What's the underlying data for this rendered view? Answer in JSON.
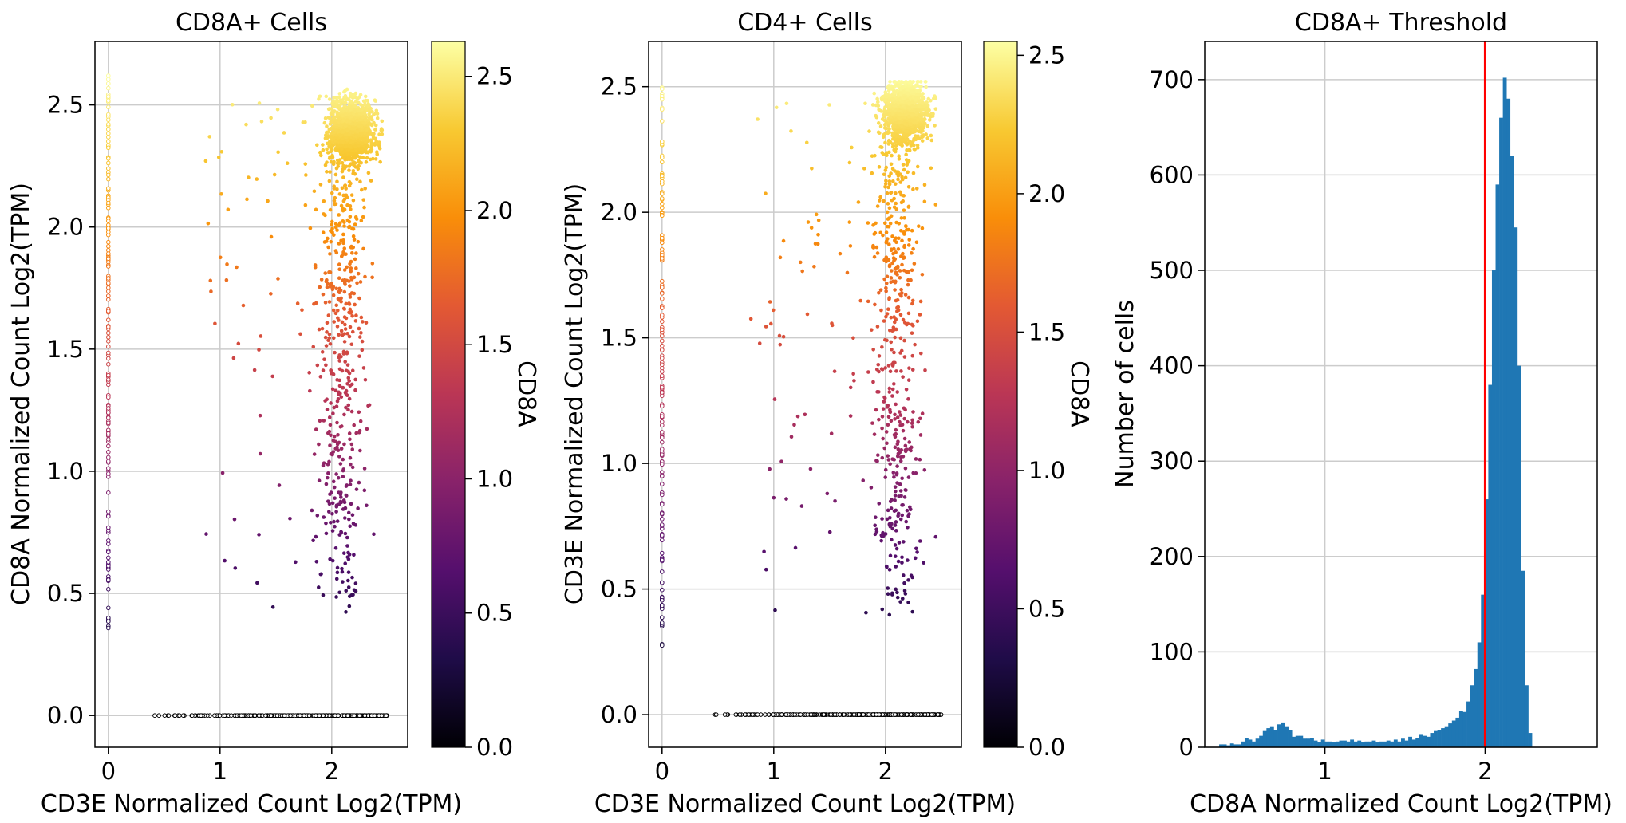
{
  "chart_data": [
    {
      "type": "scatter",
      "title": "CD8A+ Cells",
      "xlabel": "CD3E Normalized Count Log2(TPM)",
      "ylabel": "CD8A Normalized Count Log2(TPM)",
      "xlim": [
        -0.12,
        2.68
      ],
      "ylim": [
        -0.13,
        2.76
      ],
      "xticks": [
        0,
        1,
        2
      ],
      "yticks": [
        0.0,
        0.5,
        1.0,
        1.5,
        2.0,
        2.5
      ],
      "grid": true,
      "colormap": "inferno",
      "colorbar": {
        "label": "CD8A",
        "ticks": [
          0.0,
          0.5,
          1.0,
          1.5,
          2.0,
          2.5
        ],
        "range": [
          0,
          2.63
        ]
      },
      "clusters": [
        {
          "x": [
            0,
            0
          ],
          "y": [
            0.35,
            2.62
          ],
          "n": 160,
          "shape": "vertical_band"
        },
        {
          "x": [
            0.4,
            2.5
          ],
          "y": [
            0,
            0
          ],
          "n": 300,
          "shape": "horizontal_band"
        },
        {
          "x": [
            1.55,
            2.45
          ],
          "y": [
            2.15,
            2.6
          ],
          "n": 1200,
          "shape": "dense_cluster"
        },
        {
          "x": [
            0.7,
            2.5
          ],
          "y": [
            0.4,
            2.55
          ],
          "n": 650,
          "shape": "sparse_tail"
        }
      ]
    },
    {
      "type": "scatter",
      "title": "CD4+ Cells",
      "xlabel": "CD3E Normalized Count Log2(TPM)",
      "ylabel": "CD3E Normalized Count Log2(TPM)",
      "xlim": [
        -0.12,
        2.68
      ],
      "ylim": [
        -0.13,
        2.68
      ],
      "xticks": [
        0,
        1,
        2
      ],
      "yticks": [
        0.0,
        0.5,
        1.0,
        1.5,
        2.0,
        2.5
      ],
      "grid": true,
      "colormap": "inferno",
      "colorbar": {
        "label": "CD8A",
        "ticks": [
          0.0,
          0.5,
          1.0,
          1.5,
          2.0,
          2.5
        ],
        "range": [
          0,
          2.55
        ]
      },
      "clusters": [
        {
          "x": [
            0,
            0
          ],
          "y": [
            0.26,
            2.5
          ],
          "n": 160,
          "shape": "vertical_band"
        },
        {
          "x": [
            0.4,
            2.5
          ],
          "y": [
            0,
            0
          ],
          "n": 300,
          "shape": "horizontal_band"
        },
        {
          "x": [
            1.6,
            2.45
          ],
          "y": [
            2.05,
            2.52
          ],
          "n": 1100,
          "shape": "dense_cluster"
        },
        {
          "x": [
            0.7,
            2.45
          ],
          "y": [
            0.36,
            2.45
          ],
          "n": 600,
          "shape": "sparse_tail"
        }
      ]
    },
    {
      "type": "bar",
      "title": "CD8A+ Threshold",
      "xlabel": "CD8A Normalized Count Log2(TPM)",
      "ylabel": "Number of cells",
      "xlim": [
        0.25,
        2.7
      ],
      "ylim": [
        0,
        740
      ],
      "xticks": [
        1,
        2
      ],
      "yticks": [
        0,
        100,
        200,
        300,
        400,
        500,
        600,
        700
      ],
      "grid": true,
      "color": "#1f77b4",
      "bin_width": 0.0227,
      "bin_start": 0.34,
      "values": [
        3,
        3,
        2,
        4,
        3,
        3,
        6,
        10,
        8,
        6,
        9,
        12,
        17,
        20,
        22,
        18,
        24,
        26,
        22,
        18,
        11,
        12,
        12,
        9,
        9,
        10,
        7,
        5,
        8,
        6,
        6,
        5,
        6,
        7,
        7,
        6,
        8,
        6,
        7,
        5,
        6,
        6,
        7,
        5,
        6,
        6,
        7,
        6,
        8,
        6,
        9,
        7,
        11,
        8,
        10,
        13,
        12,
        11,
        15,
        17,
        18,
        20,
        22,
        25,
        28,
        31,
        38,
        37,
        48,
        65,
        82,
        110,
        160,
        260,
        380,
        500,
        590,
        660,
        702,
        680,
        620,
        545,
        400,
        185,
        65,
        15
      ],
      "threshold_line": {
        "x": 2.0,
        "color": "#ff0000"
      }
    }
  ]
}
